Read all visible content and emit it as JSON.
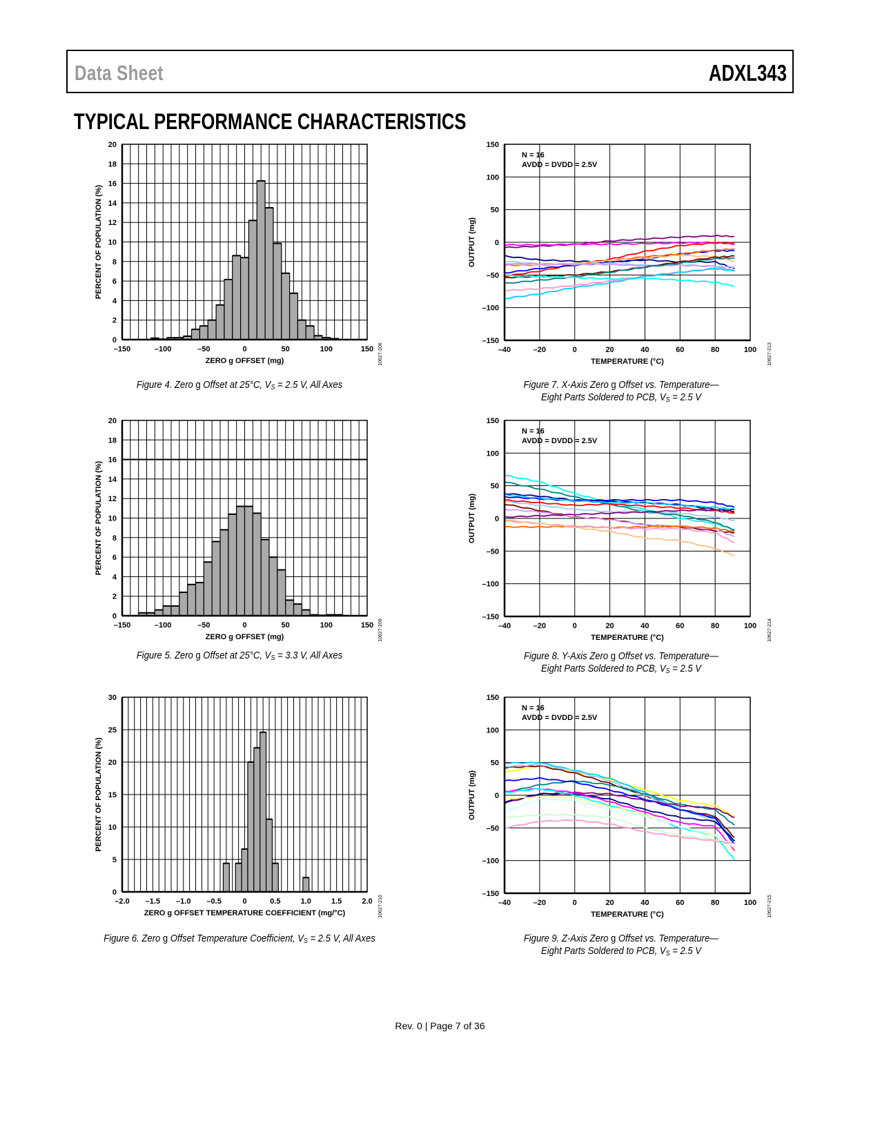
{
  "header": {
    "left": "Data Sheet",
    "right": "ADXL343"
  },
  "section_title": "TYPICAL PERFORMANCE CHARACTERISTICS",
  "footer": "Rev. 0 | Page 7 of 36",
  "annotation": {
    "line1": "N = 16",
    "line2": "AVDD = DVDD = 2.5V"
  },
  "captions": [
    {
      "pre": "Figure 4. Zero ",
      "g": "g",
      "mid": " Offset at 25°C, V",
      "sub": "S",
      "post": " = 2.5 V, All Axes",
      "line2": ""
    },
    {
      "pre": "Figure 5. Zero ",
      "g": "g",
      "mid": " Offset at 25°C, V",
      "sub": "S",
      "post": " = 3.3 V, All Axes",
      "line2": ""
    },
    {
      "pre": "Figure 6. Zero ",
      "g": "g",
      "mid": " Offset Temperature Coefficient, V",
      "sub": "S",
      "post": " = 2.5 V, All Axes",
      "line2": ""
    },
    {
      "pre": "Figure 7. X-Axis Zero ",
      "g": "g",
      "mid": " Offset vs. Temperature—",
      "sub": "",
      "post": "",
      "line2": "Eight Parts Soldered to PCB, V",
      "sub2": "S",
      "post2": " = 2.5 V"
    },
    {
      "pre": "Figure 8. Y-Axis Zero ",
      "g": "g",
      "mid": " Offset vs. Temperature—",
      "sub": "",
      "post": "",
      "line2": "Eight Parts Soldered to PCB, V",
      "sub2": "S",
      "post2": " = 2.5 V"
    },
    {
      "pre": "Figure 9. Z-Axis Zero ",
      "g": "g",
      "mid": " Offset vs. Temperature—",
      "sub": "",
      "post": "",
      "line2": "Eight Parts Soldered to PCB, V",
      "sub2": "S",
      "post2": " = 2.5 V"
    }
  ],
  "chart_data": [
    {
      "type": "bar",
      "figure_id": "10627-206",
      "xlabel": "ZERO g OFFSET (mg)",
      "ylabel": "PERCENT OF POPULATION (%)",
      "xlim": [
        -150,
        150
      ],
      "ylim": [
        0,
        20
      ],
      "grid": true,
      "bin_width": 10,
      "xticks": [
        -150,
        -100,
        -50,
        0,
        50,
        100,
        150
      ],
      "xtick_labels": [
        "–150",
        "–100",
        "–50",
        "0",
        "50",
        "100",
        "150"
      ],
      "yticks": [
        0,
        2,
        4,
        6,
        8,
        10,
        12,
        14,
        16,
        18,
        20
      ],
      "ytick_labels": [
        "0",
        "2",
        "4",
        "6",
        "8",
        "10",
        "12",
        "14",
        "16",
        "18",
        "20"
      ],
      "bin_centers": [
        -110,
        -100,
        -90,
        -80,
        -70,
        -60,
        -50,
        -40,
        -30,
        -20,
        -10,
        0,
        10,
        20,
        30,
        40,
        50,
        60,
        70,
        80,
        90,
        100,
        110
      ],
      "values": [
        0.15,
        0.05,
        0.2,
        0.2,
        0.35,
        1.05,
        1.4,
        2.0,
        3.55,
        6.15,
        8.6,
        8.4,
        12.2,
        16.25,
        13.5,
        9.85,
        6.8,
        4.75,
        2.0,
        1.4,
        0.4,
        0.2,
        0.1
      ]
    },
    {
      "type": "bar",
      "figure_id": "10627-209",
      "xlabel": "ZERO g OFFSET (mg)",
      "ylabel": "PERCENT OF POPULATION (%)",
      "xlim": [
        -150,
        150
      ],
      "ylim": [
        0,
        20
      ],
      "grid": true,
      "bin_width": 10,
      "xticks": [
        -150,
        -100,
        -50,
        0,
        50,
        100,
        150
      ],
      "xtick_labels": [
        "–150",
        "–100",
        "–50",
        "0",
        "50",
        "100",
        "150"
      ],
      "yticks": [
        0,
        2,
        4,
        6,
        8,
        10,
        12,
        14,
        16,
        18,
        20
      ],
      "ytick_labels": [
        "0",
        "2",
        "4",
        "6",
        "8",
        "10",
        "12",
        "14",
        "16",
        "18",
        "20"
      ],
      "bin_centers": [
        -125,
        -115,
        -105,
        -95,
        -85,
        -75,
        -65,
        -55,
        -45,
        -35,
        -25,
        -15,
        -5,
        5,
        15,
        25,
        35,
        45,
        55,
        65,
        75,
        85,
        95,
        105,
        115
      ],
      "values": [
        0.3,
        0.3,
        0.6,
        1.0,
        1.0,
        2.4,
        3.2,
        3.4,
        5.5,
        7.6,
        8.8,
        10.4,
        11.2,
        11.2,
        10.5,
        7.8,
        6.0,
        4.7,
        1.6,
        1.2,
        0.6,
        0.1,
        0.05,
        0.1,
        0.1
      ]
    },
    {
      "type": "bar",
      "figure_id": "10627-210",
      "xlabel": "ZERO g OFFSET TEMPERATURE COEFFICIENT (mg/°C)",
      "ylabel": "PERCENT OF POPULATION (%)",
      "xlim": [
        -2.0,
        2.0
      ],
      "ylim": [
        0,
        30
      ],
      "grid": true,
      "bin_width": 0.1,
      "xticks": [
        -2.0,
        -1.5,
        -1.0,
        -0.5,
        0,
        0.5,
        1.0,
        1.5,
        2.0
      ],
      "xtick_labels": [
        "–2.0",
        "–1.5",
        "–1.0",
        "–0.5",
        "0",
        "0.5",
        "1.0",
        "1.5",
        "2.0"
      ],
      "yticks": [
        0,
        5,
        10,
        15,
        20,
        25,
        30
      ],
      "ytick_labels": [
        "0",
        "5",
        "10",
        "15",
        "20",
        "25",
        "30"
      ],
      "bin_centers": [
        -0.3,
        -0.1,
        0.0,
        0.1,
        0.2,
        0.3,
        0.4,
        0.5,
        1.0
      ],
      "values": [
        4.4,
        4.4,
        6.6,
        20.0,
        22.2,
        24.6,
        11.2,
        4.4,
        2.2
      ]
    },
    {
      "type": "line",
      "figure_id": "10627-213",
      "xlabel": "TEMPERATURE (°C)",
      "ylabel": "OUTPUT (mg)",
      "xlim": [
        -40,
        100
      ],
      "ylim": [
        -150,
        150
      ],
      "grid": true,
      "xticks": [
        -40,
        -20,
        0,
        20,
        40,
        60,
        80,
        100
      ],
      "xtick_labels": [
        "–40",
        "–20",
        "0",
        "20",
        "40",
        "60",
        "80",
        "100"
      ],
      "yticks": [
        -150,
        -100,
        -50,
        0,
        50,
        100,
        150
      ],
      "ytick_labels": [
        "–150",
        "–100",
        "–50",
        "0",
        "50",
        "100",
        "150"
      ],
      "x": [
        -40,
        -20,
        0,
        20,
        40,
        60,
        80,
        91
      ],
      "series": [
        {
          "color": "#800080",
          "values": [
            -8,
            -6,
            -3,
            2,
            5,
            8,
            10,
            9
          ]
        },
        {
          "color": "#ff00ff",
          "values": [
            -4,
            -4,
            -3,
            -3,
            -2,
            -1,
            0,
            -3
          ]
        },
        {
          "color": "#ff0000",
          "values": [
            -52,
            -44,
            -34,
            -26,
            -14,
            -5,
            -1,
            -1
          ]
        },
        {
          "color": "#0000ff",
          "values": [
            -47,
            -40,
            -35,
            -31,
            -25,
            -18,
            -13,
            -13
          ]
        },
        {
          "color": "#000080",
          "values": [
            -21,
            -27,
            -29,
            -30,
            -27,
            -30,
            -30,
            -40
          ]
        },
        {
          "color": "#ff6600",
          "values": [
            -35,
            -35,
            -33,
            -28,
            -22,
            -18,
            -12,
            -10
          ]
        },
        {
          "color": "#ffc080",
          "values": [
            -33,
            -35,
            -32,
            -28,
            -24,
            -20,
            -22,
            -29
          ]
        },
        {
          "color": "#99ccff",
          "values": [
            -29,
            -33,
            -33,
            -32,
            -35,
            -34,
            -37,
            -38
          ]
        },
        {
          "color": "#cc99ff",
          "values": [
            -33,
            -33,
            -34,
            -34,
            -36,
            -35,
            -37,
            -43
          ]
        },
        {
          "color": "#800000",
          "values": [
            -54,
            -52,
            -50,
            -45,
            -38,
            -30,
            -23,
            -21
          ]
        },
        {
          "color": "#008080",
          "values": [
            -63,
            -58,
            -53,
            -46,
            -38,
            -32,
            -25,
            -24
          ]
        },
        {
          "color": "#00ffff",
          "values": [
            -51,
            -52,
            -54,
            -56,
            -55,
            -58,
            -61,
            -67
          ]
        },
        {
          "color": "#ff99cc",
          "values": [
            -74,
            -71,
            -66,
            -59,
            -52,
            -46,
            -41,
            -42
          ]
        },
        {
          "color": "#00ccff",
          "values": [
            -86,
            -79,
            -69,
            -62,
            -52,
            -46,
            -40,
            -44
          ]
        }
      ]
    },
    {
      "type": "line",
      "figure_id": "10627-214",
      "xlabel": "TEMPERATURE (°C)",
      "ylabel": "OUTPUT (mg)",
      "xlim": [
        -40,
        100
      ],
      "ylim": [
        -150,
        150
      ],
      "grid": true,
      "xticks": [
        -40,
        -20,
        0,
        20,
        40,
        60,
        80,
        100
      ],
      "xtick_labels": [
        "–40",
        "–20",
        "0",
        "20",
        "40",
        "60",
        "80",
        "100"
      ],
      "yticks": [
        -150,
        -100,
        -50,
        0,
        50,
        100,
        150
      ],
      "ytick_labels": [
        "–150",
        "–100",
        "–50",
        "0",
        "50",
        "100",
        "150"
      ],
      "x": [
        -40,
        -20,
        0,
        20,
        40,
        60,
        80,
        91
      ],
      "series": [
        {
          "color": "#00ffff",
          "values": [
            66,
            56,
            38,
            24,
            14,
            0,
            -8,
            -17
          ]
        },
        {
          "color": "#008080",
          "values": [
            56,
            45,
            33,
            22,
            10,
            5,
            -6,
            -18
          ]
        },
        {
          "color": "#000080",
          "values": [
            38,
            34,
            28,
            26,
            24,
            21,
            14,
            10
          ]
        },
        {
          "color": "#0000ff",
          "values": [
            33,
            30,
            27,
            28,
            28,
            28,
            24,
            17
          ]
        },
        {
          "color": "#00ccff",
          "values": [
            36,
            31,
            27,
            24,
            24,
            20,
            17,
            14
          ]
        },
        {
          "color": "#ff0000",
          "values": [
            28,
            24,
            20,
            22,
            19,
            16,
            12,
            8
          ]
        },
        {
          "color": "#99ccff",
          "values": [
            26,
            20,
            14,
            10,
            11,
            8,
            2,
            -3
          ]
        },
        {
          "color": "#800000",
          "values": [
            22,
            12,
            2,
            -1,
            -10,
            -13,
            -19,
            -22
          ]
        },
        {
          "color": "#cc99ff",
          "values": [
            14,
            10,
            2,
            -2,
            -10,
            -12,
            -17,
            -28
          ]
        },
        {
          "color": "#800080",
          "values": [
            2,
            4,
            6,
            8,
            10,
            12,
            13,
            13
          ]
        },
        {
          "color": "#ff6600",
          "values": [
            -13,
            -13,
            -12,
            -14,
            -13,
            -12,
            -15,
            -20
          ]
        },
        {
          "color": "#ff99cc",
          "values": [
            -4,
            -8,
            -12,
            -14,
            -16,
            -16,
            -22,
            -37
          ]
        },
        {
          "color": "#ffc080",
          "values": [
            -2,
            -8,
            -14,
            -20,
            -30,
            -34,
            -46,
            -57
          ]
        }
      ]
    },
    {
      "type": "line",
      "figure_id": "10627-215",
      "xlabel": "TEMPERATURE (°C)",
      "ylabel": "OUTPUT (mg)",
      "xlim": [
        -40,
        100
      ],
      "ylim": [
        -150,
        150
      ],
      "grid": true,
      "xticks": [
        -40,
        -20,
        0,
        20,
        40,
        60,
        80,
        100
      ],
      "xtick_labels": [
        "–40",
        "–20",
        "0",
        "20",
        "40",
        "60",
        "80",
        "100"
      ],
      "yticks": [
        -150,
        -100,
        -50,
        0,
        50,
        100,
        150
      ],
      "ytick_labels": [
        "–150",
        "–100",
        "–50",
        "0",
        "50",
        "100",
        "150"
      ],
      "x": [
        -40,
        -20,
        0,
        20,
        40,
        60,
        80,
        91
      ],
      "series": [
        {
          "color": "#ffff00",
          "values": [
            35,
            45,
            36,
            24,
            8,
            -8,
            -16,
            -33
          ]
        },
        {
          "color": "#800000",
          "values": [
            42,
            45,
            34,
            18,
            0,
            -22,
            -32,
            -65
          ]
        },
        {
          "color": "#00ccff",
          "values": [
            49,
            50,
            38,
            26,
            4,
            -22,
            -35,
            -70
          ]
        },
        {
          "color": "#99ccff",
          "values": [
            44,
            47,
            37,
            22,
            0,
            -22,
            -38,
            -73
          ]
        },
        {
          "color": "#008080",
          "values": [
            4,
            16,
            22,
            16,
            2,
            -14,
            -22,
            -46
          ]
        },
        {
          "color": "#0000ff",
          "values": [
            22,
            26,
            20,
            8,
            -6,
            -22,
            -35,
            -75
          ]
        },
        {
          "color": "#800080",
          "values": [
            -12,
            2,
            4,
            2,
            -8,
            -16,
            -20,
            -34
          ]
        },
        {
          "color": "#000080",
          "values": [
            -10,
            2,
            2,
            -6,
            -22,
            -34,
            -40,
            -70
          ]
        },
        {
          "color": "#ff00ff",
          "values": [
            6,
            10,
            4,
            -10,
            -26,
            -42,
            -48,
            -85
          ]
        },
        {
          "color": "#00ffff",
          "values": [
            4,
            10,
            0,
            -16,
            -30,
            -50,
            -62,
            -99
          ]
        },
        {
          "color": "#ffff99",
          "values": [
            -6,
            -2,
            -4,
            -18,
            -30,
            -48,
            -62,
            -88
          ]
        },
        {
          "color": "#ccffff",
          "values": [
            -25,
            -6,
            -8,
            -22,
            -32,
            -48,
            -60,
            -80
          ]
        },
        {
          "color": "#ccffcc",
          "values": [
            -34,
            -30,
            -30,
            -34,
            -50,
            -62,
            -68,
            -78
          ]
        },
        {
          "color": "#ff99cc",
          "values": [
            -50,
            -40,
            -38,
            -44,
            -56,
            -64,
            -70,
            -74
          ]
        }
      ]
    }
  ]
}
